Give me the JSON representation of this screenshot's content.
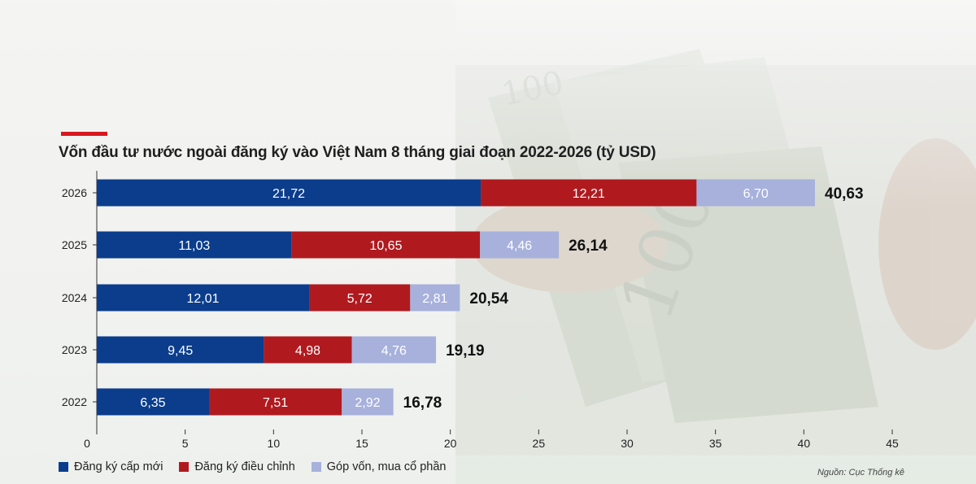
{
  "title": "Vốn đầu tư nước ngoài đăng ký vào Việt Nam 8 tháng giai đoạn 2022-2026 (tỷ USD)",
  "source": "Nguồn: Cục Thống kê",
  "colors": {
    "accent": "#d7191f",
    "series": [
      "#0b3d8c",
      "#b01a1f",
      "#a7b1dc"
    ]
  },
  "chart_data": {
    "type": "bar",
    "orientation": "horizontal",
    "stacked": true,
    "categories": [
      "2026",
      "2025",
      "2024",
      "2023",
      "2022"
    ],
    "series": [
      {
        "name": "Đăng ký cấp mới",
        "values": [
          21.72,
          11.03,
          12.01,
          9.45,
          6.35
        ],
        "labels": [
          "21,72",
          "11,03",
          "12,01",
          "9,45",
          "6,35"
        ]
      },
      {
        "name": "Đăng ký điều chỉnh",
        "values": [
          12.21,
          10.65,
          5.72,
          4.98,
          7.51
        ],
        "labels": [
          "12,21",
          "10,65",
          "5,72",
          "4,98",
          "7,51"
        ]
      },
      {
        "name": "Góp vốn, mua cổ phần",
        "values": [
          6.7,
          4.46,
          2.81,
          4.76,
          2.92
        ],
        "labels": [
          "6,70",
          "4,46",
          "2,81",
          "4,76",
          "2,92"
        ]
      }
    ],
    "totals": [
      40.63,
      26.14,
      20.54,
      19.19,
      16.78
    ],
    "total_labels": [
      "40,63",
      "26,14",
      "20,54",
      "19,19",
      "16,78"
    ],
    "xlim": [
      0,
      45
    ],
    "xticks": [
      0,
      5,
      10,
      15,
      20,
      25,
      30,
      35,
      40,
      45
    ],
    "legend_position": "bottom-left",
    "grid": false
  }
}
